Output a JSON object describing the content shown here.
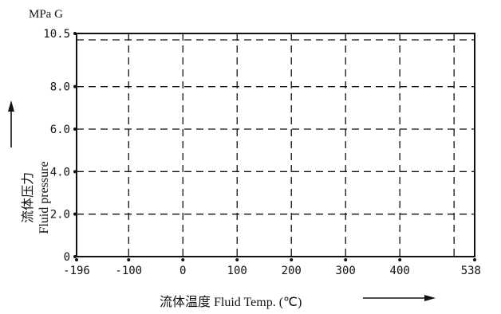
{
  "chart_data": {
    "type": "line",
    "title": "",
    "y_unit": "MPa G",
    "ylabel_zh": "流体压力",
    "ylabel_en": "Fluid pressure",
    "xlabel": "流体温度  Fluid Temp. (℃)",
    "xlim": [
      -196,
      538
    ],
    "ylim": [
      0,
      10.5
    ],
    "x_ticks": [
      {
        "value": -196,
        "label": "-196"
      },
      {
        "value": -100,
        "label": "-100"
      },
      {
        "value": 0,
        "label": "0"
      },
      {
        "value": 100,
        "label": "100"
      },
      {
        "value": 200,
        "label": "200"
      },
      {
        "value": 300,
        "label": "300"
      },
      {
        "value": 400,
        "label": "400"
      },
      {
        "value": 538,
        "label": "538"
      }
    ],
    "y_ticks": [
      {
        "value": 0,
        "label": "0"
      },
      {
        "value": 2.0,
        "label": "2.0"
      },
      {
        "value": 4.0,
        "label": "4.0"
      },
      {
        "value": 6.0,
        "label": "6.0"
      },
      {
        "value": 8.0,
        "label": "8.0"
      },
      {
        "value": 10.5,
        "label": "10.5"
      }
    ],
    "grid": true,
    "grid_style": "dashed",
    "x_grid_values": [
      -100,
      0,
      100,
      200,
      300,
      400,
      500
    ],
    "y_grid_values": [
      2.0,
      4.0,
      6.0,
      8.0,
      10.2
    ],
    "series": []
  }
}
